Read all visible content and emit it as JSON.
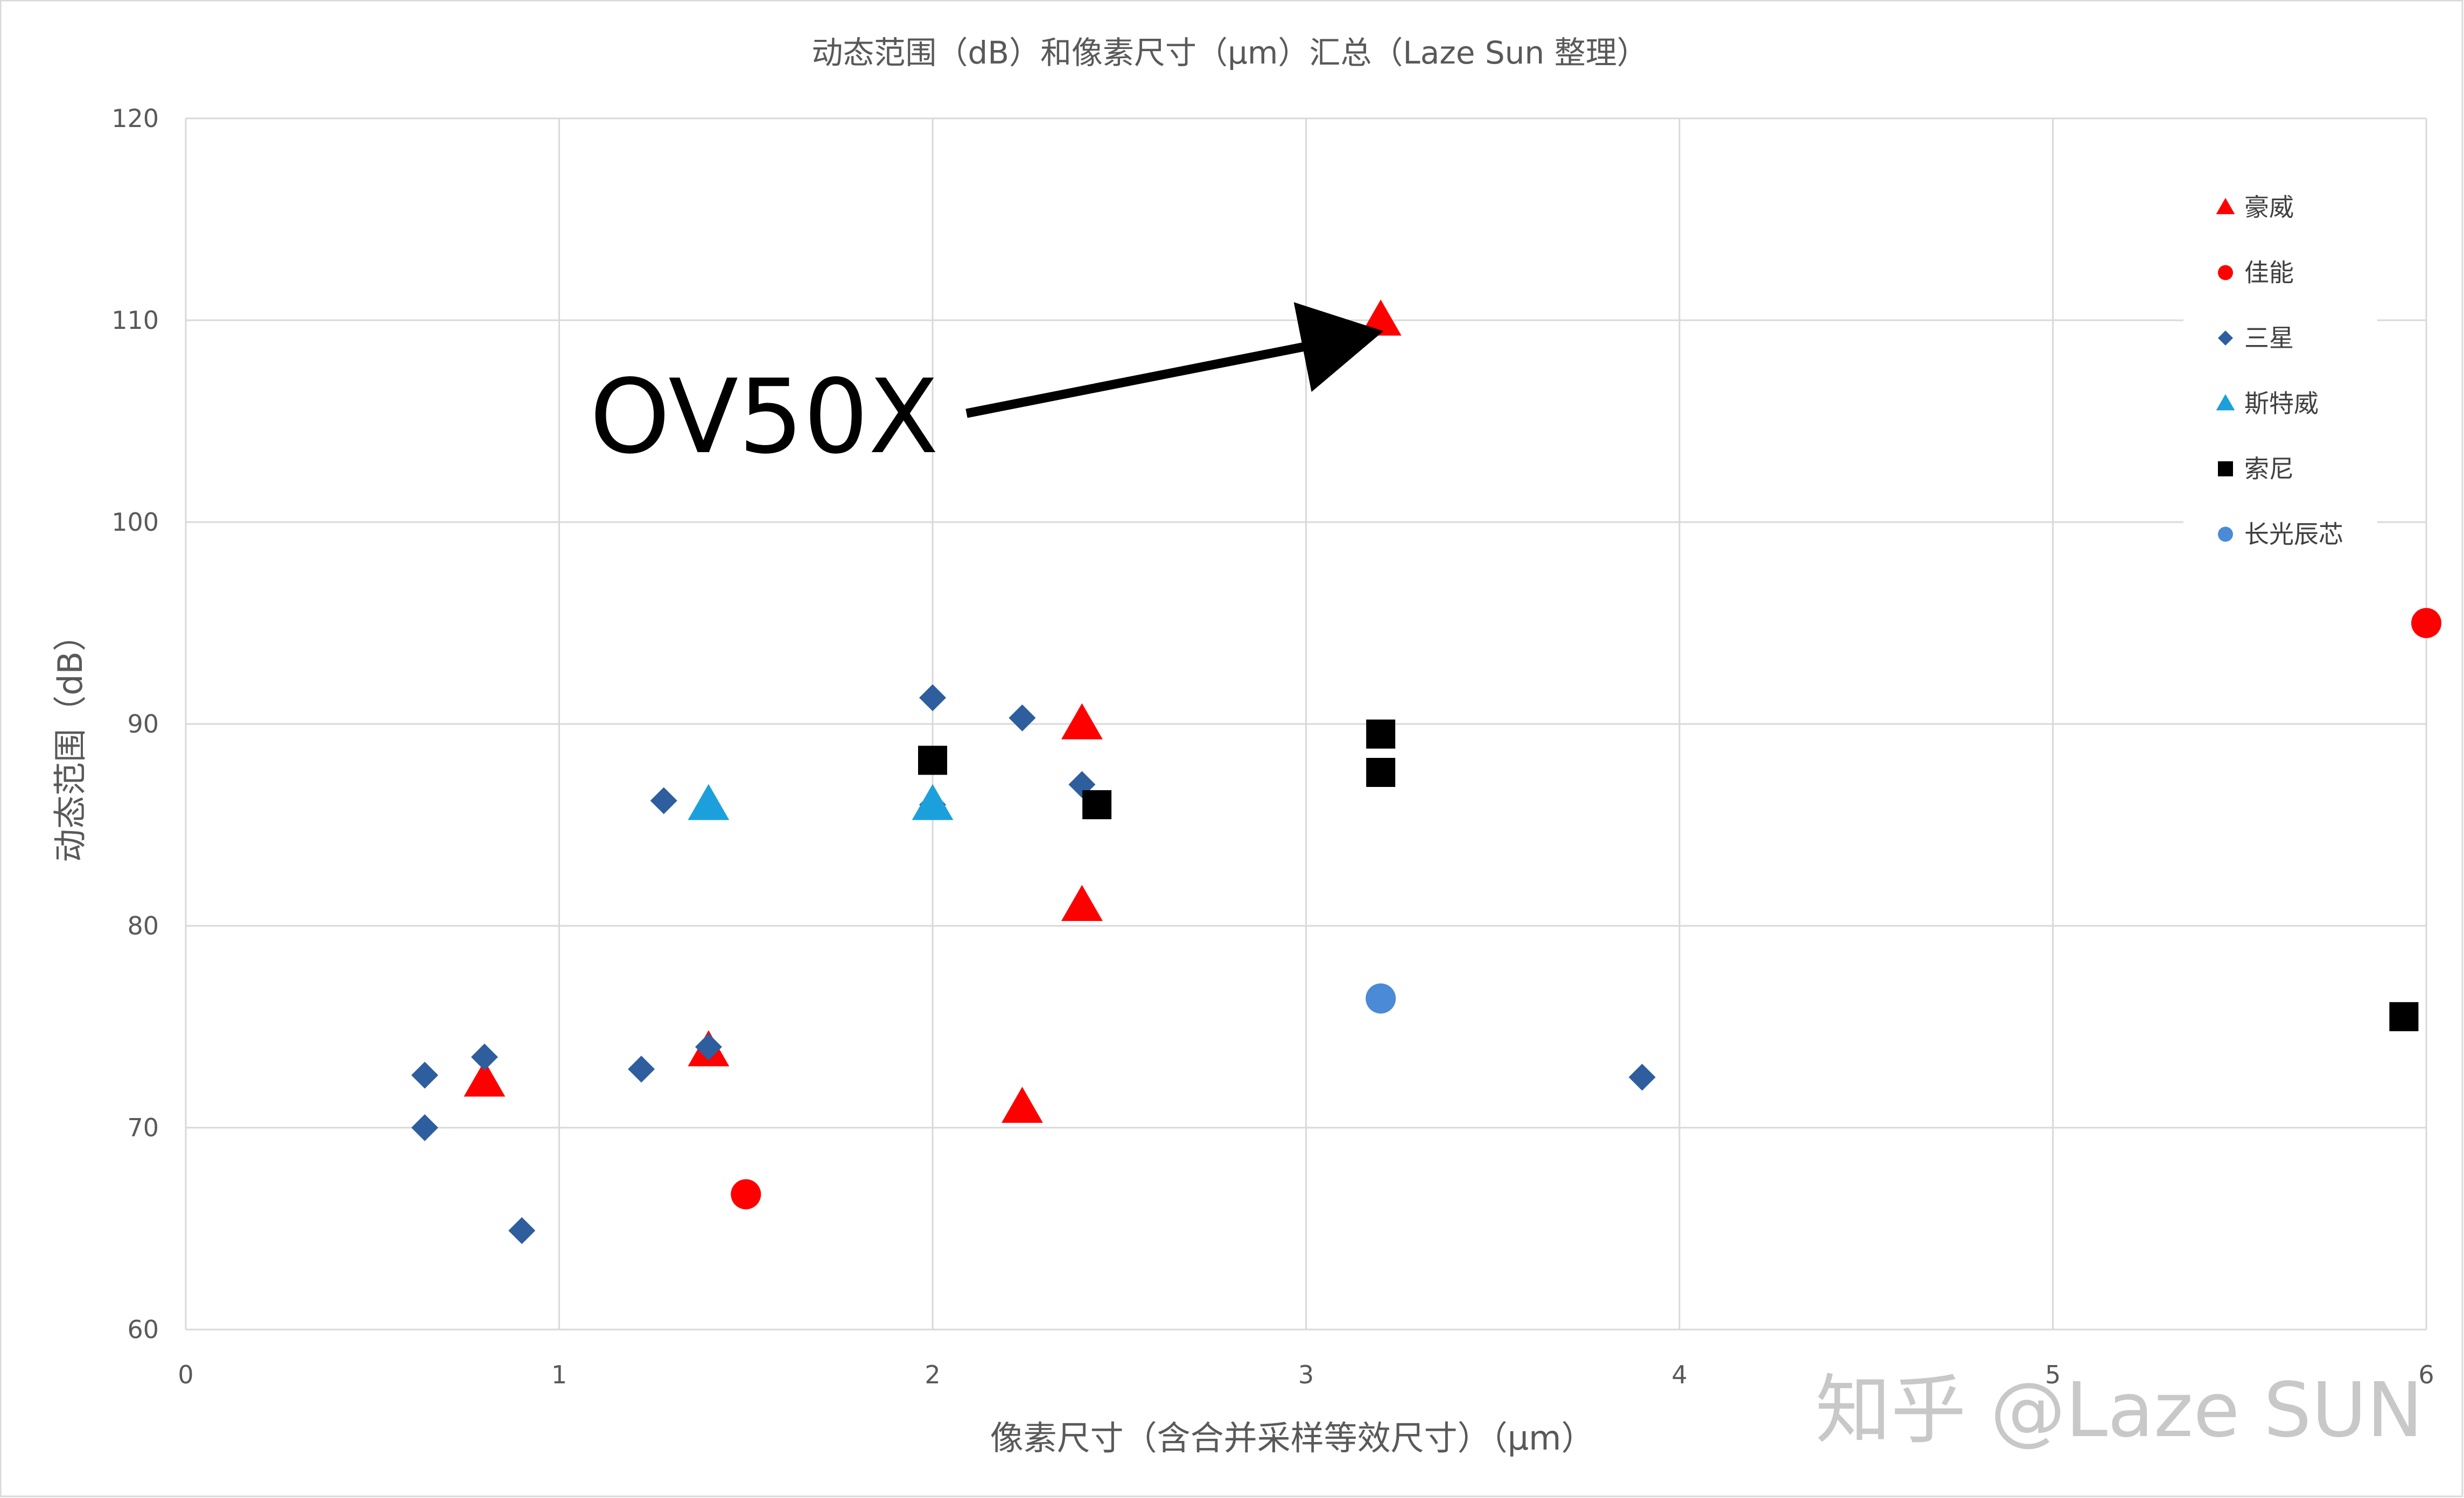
{
  "chart_data": {
    "type": "scatter",
    "title": "动态范围（dB）和像素尺寸（μm）汇总（Laze Sun 整理）",
    "xlabel": "像素尺寸（含合并采样等效尺寸）（μm）",
    "ylabel": "动态范围（dB）",
    "xlim": [
      0,
      6
    ],
    "ylim": [
      60,
      120
    ],
    "x_ticks": [
      "0",
      "1",
      "2",
      "3",
      "4",
      "5",
      "6"
    ],
    "y_ticks": [
      "60",
      "70",
      "80",
      "90",
      "100",
      "110",
      "120"
    ],
    "grid": true,
    "legend_position": "top-right",
    "series": [
      {
        "name": "豪威",
        "marker": "triangle",
        "color": "#ff0000",
        "points": [
          [
            3.2,
            110
          ],
          [
            2.4,
            90
          ],
          [
            2.4,
            81
          ],
          [
            2.24,
            71
          ],
          [
            0.8,
            72.3
          ],
          [
            1.4,
            73.8
          ]
        ]
      },
      {
        "name": "佳能",
        "marker": "circle",
        "color": "#ff0000",
        "points": [
          [
            1.5,
            66.7
          ],
          [
            6.0,
            95
          ]
        ]
      },
      {
        "name": "三星",
        "marker": "diamond",
        "color": "#2e5e9e",
        "points": [
          [
            0.64,
            72.6
          ],
          [
            0.64,
            70
          ],
          [
            0.8,
            73.5
          ],
          [
            0.9,
            64.9
          ],
          [
            1.22,
            72.9
          ],
          [
            1.28,
            86.2
          ],
          [
            1.4,
            74
          ],
          [
            2.0,
            91.3
          ],
          [
            2.0,
            86
          ],
          [
            2.24,
            90.3
          ],
          [
            2.4,
            87
          ],
          [
            3.9,
            72.5
          ]
        ]
      },
      {
        "name": "斯特威",
        "marker": "triangle",
        "color": "#1ca0dc",
        "points": [
          [
            1.4,
            86
          ],
          [
            2.0,
            86
          ]
        ]
      },
      {
        "name": "索尼",
        "marker": "square",
        "color": "#000000",
        "points": [
          [
            2.0,
            88.2
          ],
          [
            2.44,
            86
          ],
          [
            3.2,
            89.5
          ],
          [
            3.2,
            87.6
          ],
          [
            5.94,
            75.5
          ]
        ]
      },
      {
        "name": "长光辰芯",
        "marker": "circle",
        "color": "#4a8ad6",
        "points": [
          [
            3.2,
            76.4
          ]
        ]
      }
    ],
    "annotations": [
      {
        "text": "OV50X",
        "arrow_to": [
          3.2,
          110
        ]
      }
    ]
  },
  "watermark": "知乎 @Laze SUN"
}
